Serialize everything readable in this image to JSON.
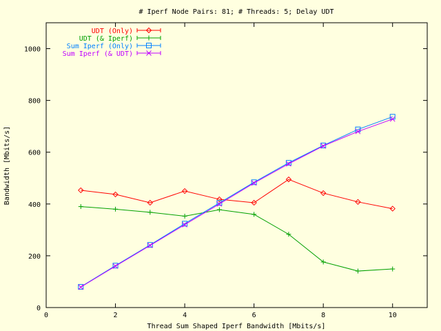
{
  "chart_data": {
    "type": "line",
    "title": "# Iperf Node Pairs: 81; # Threads: 5; Delay UDT",
    "xlabel": "Thread Sum Shaped Iperf Bandwidth [Mbits/s]",
    "ylabel": "Bandwidth [Mbits/s]",
    "xlim": [
      0,
      11
    ],
    "ylim": [
      0,
      1100
    ],
    "xticks": [
      0,
      2,
      4,
      6,
      8,
      10
    ],
    "yticks": [
      0,
      200,
      400,
      600,
      800,
      1000
    ],
    "grid": false,
    "legend_position": "top-left",
    "x": [
      1,
      2,
      3,
      4,
      5,
      6,
      7,
      8,
      9,
      10
    ],
    "series": [
      {
        "name": "UDT (Only)",
        "color": "#ff0000",
        "marker": "diamond",
        "values": [
          453,
          437,
          405,
          450,
          418,
          405,
          495,
          442,
          408,
          382
        ]
      },
      {
        "name": "UDT (& Iperf)",
        "color": "#00a000",
        "marker": "plus",
        "values": [
          390,
          380,
          368,
          353,
          378,
          360,
          283,
          176,
          141,
          149
        ]
      },
      {
        "name": "Sum Iperf (Only)",
        "color": "#0080ff",
        "marker": "square",
        "values": [
          80,
          162,
          242,
          324,
          404,
          484,
          559,
          626,
          688,
          737
        ]
      },
      {
        "name": "Sum Iperf (& UDT)",
        "color": "#c000ff",
        "marker": "cross",
        "values": [
          79,
          160,
          240,
          320,
          400,
          481,
          555,
          624,
          680,
          728
        ]
      }
    ]
  }
}
